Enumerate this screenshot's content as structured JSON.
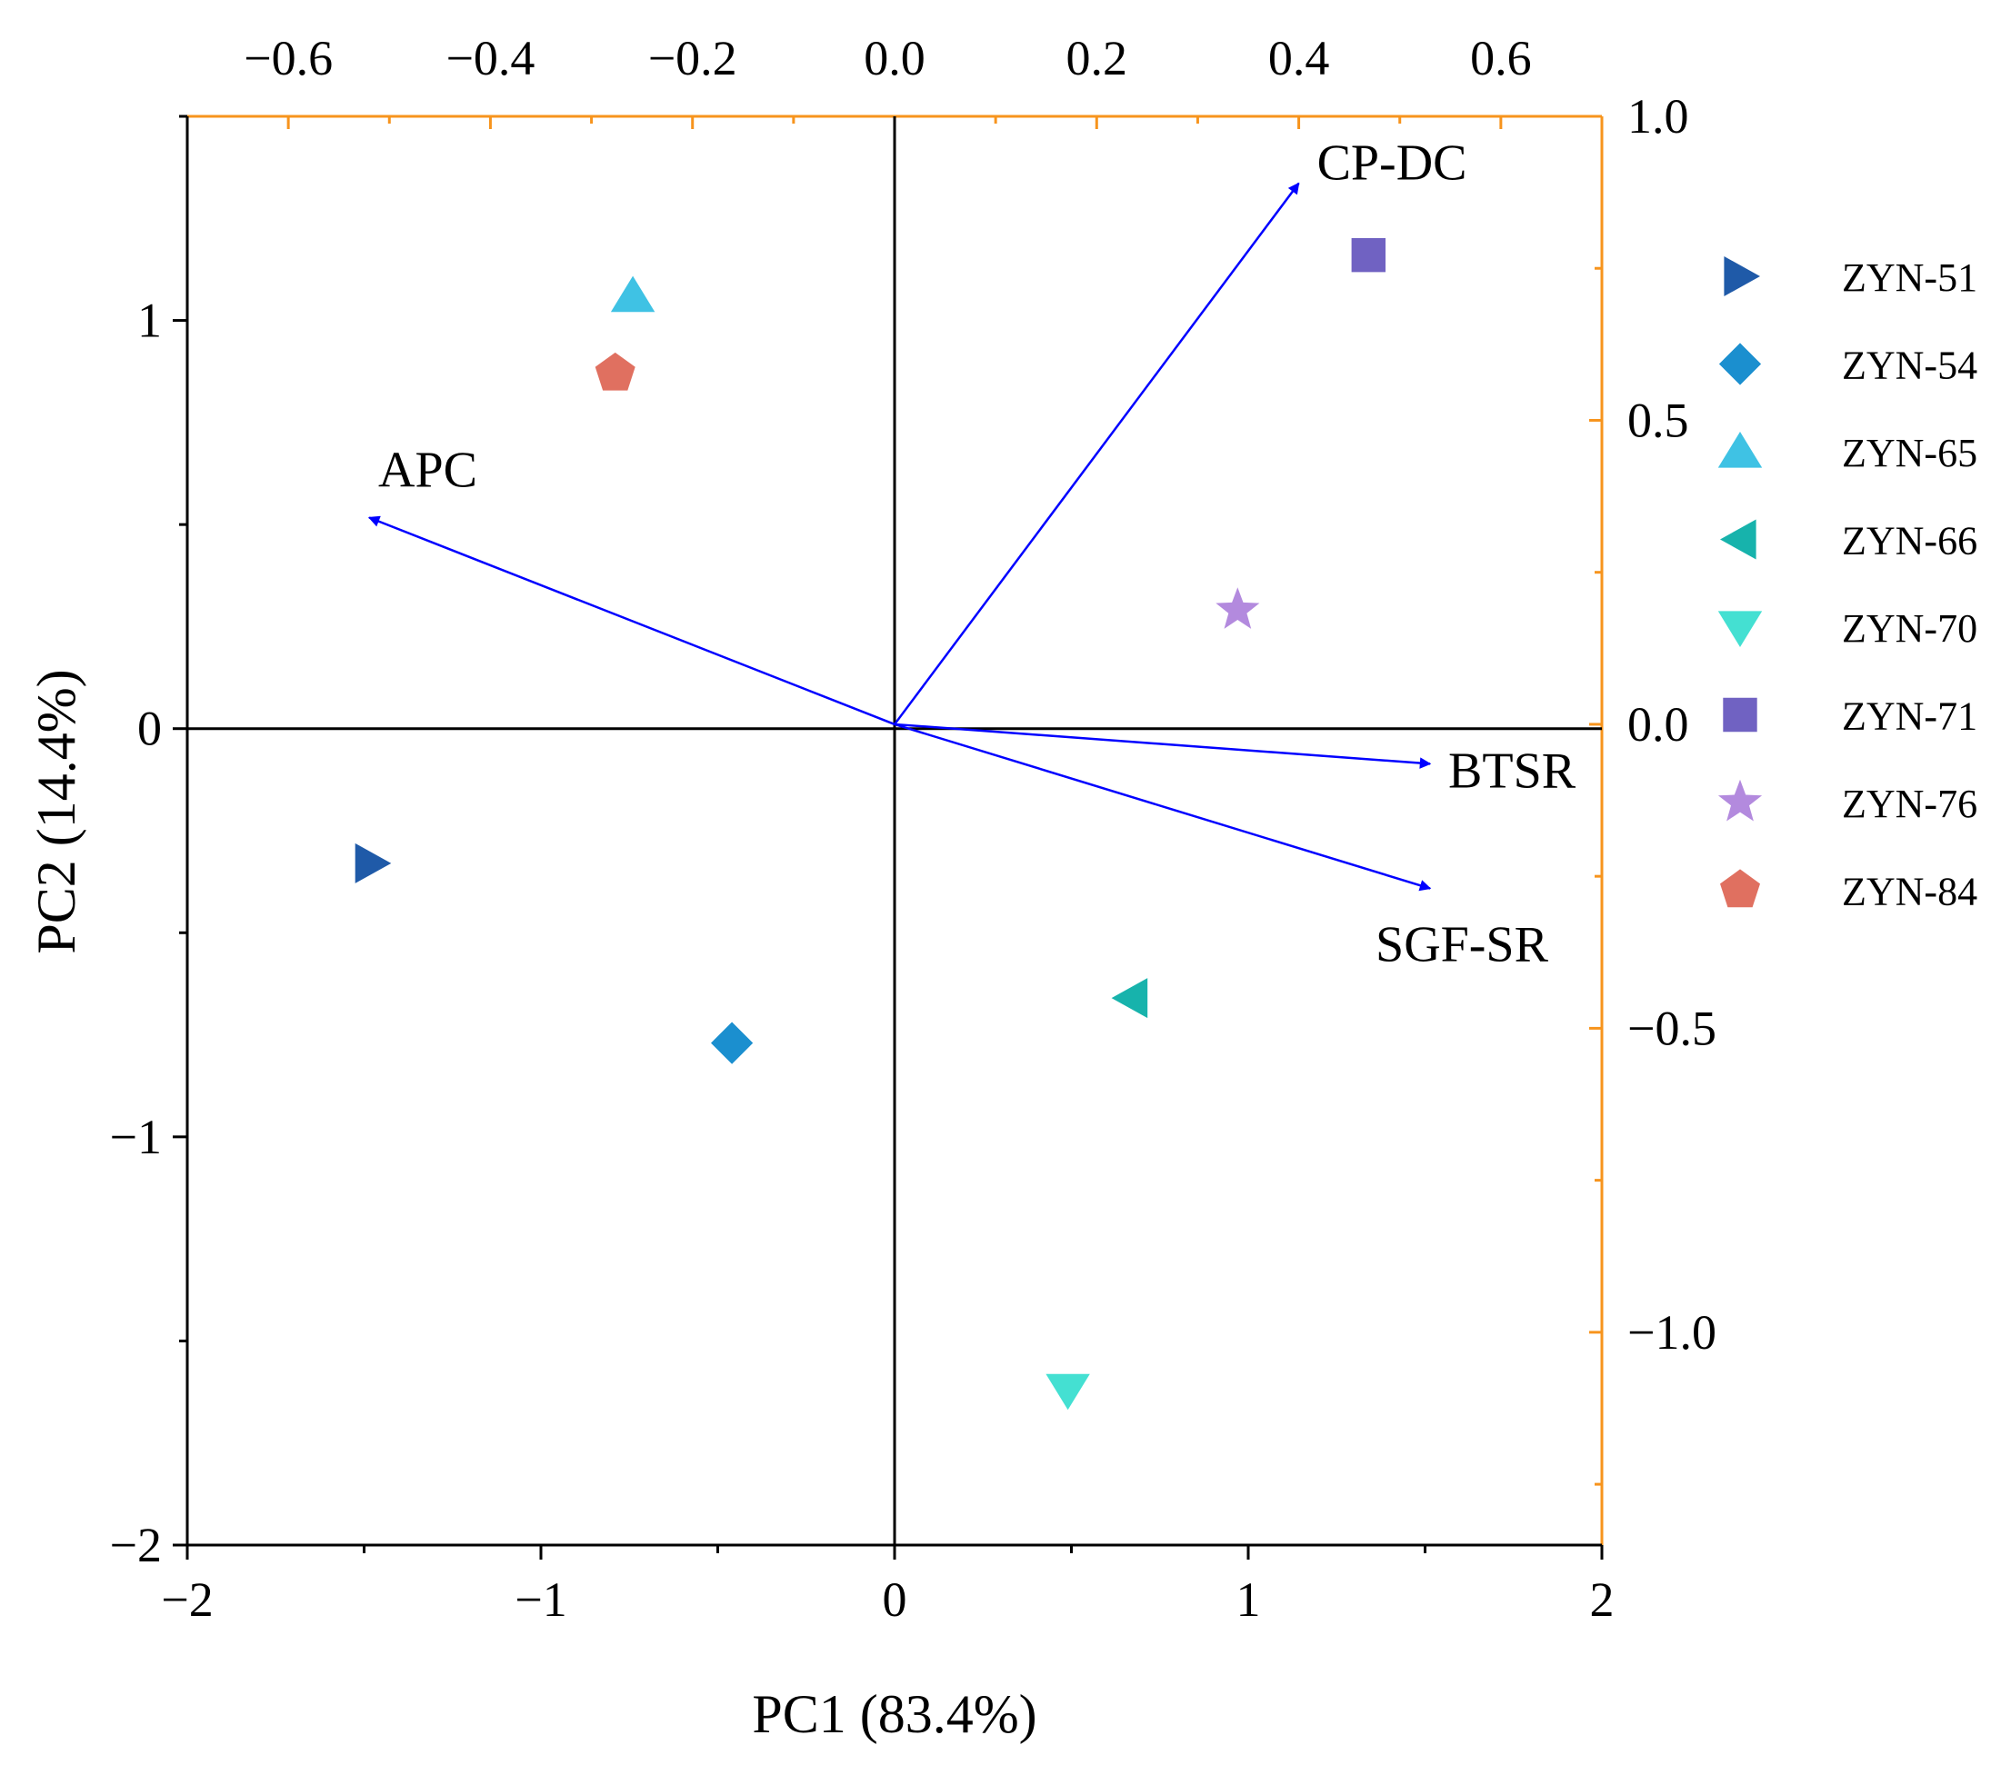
{
  "chart_data": {
    "type": "scatter",
    "subtype": "pca-biplot",
    "title": "",
    "xlabel": "PC1 (83.4%)",
    "ylabel": "PC2 (14.4%)",
    "xlim": [
      -2,
      2
    ],
    "ylim": [
      -2,
      1.5
    ],
    "x_ticks": [
      -2,
      -1,
      0,
      1,
      2
    ],
    "x_tick_labels": [
      "−2",
      "−1",
      "0",
      "1",
      "2"
    ],
    "y_ticks": [
      -2,
      -1,
      0,
      1
    ],
    "y_tick_labels": [
      "−2",
      "−1",
      "0",
      "1"
    ],
    "secondary_x": {
      "lim": [
        -0.7,
        0.7
      ],
      "ticks": [
        -0.6,
        -0.4,
        -0.2,
        0.0,
        0.2,
        0.4,
        0.6
      ],
      "tick_labels": [
        "−0.6",
        "−0.4",
        "−0.2",
        "0.0",
        "0.2",
        "0.4",
        "0.6"
      ]
    },
    "secondary_y": {
      "lim": [
        -1.35,
        1.0
      ],
      "ticks": [
        -1.0,
        -0.5,
        0.0,
        0.5,
        1.0
      ],
      "tick_labels": [
        "−1.0",
        "−0.5",
        "0.0",
        "0.5",
        "1.0"
      ]
    },
    "grid": false,
    "legend_position": "right",
    "loadings": [
      {
        "label": "CP-DC",
        "x": 0.4,
        "y": 0.89
      },
      {
        "label": "APC",
        "x": -0.52,
        "y": 0.34
      },
      {
        "label": "BTSR",
        "x": 0.53,
        "y": -0.065
      },
      {
        "label": "SGF-SR",
        "x": 0.53,
        "y": -0.27
      }
    ],
    "series": [
      {
        "name": "ZYN-51",
        "marker": "triangle-right",
        "color": "#1f5aa8",
        "x": -1.48,
        "y": -0.33
      },
      {
        "name": "ZYN-54",
        "marker": "diamond",
        "color": "#1b8fcf",
        "x": -0.46,
        "y": -0.77
      },
      {
        "name": "ZYN-65",
        "marker": "triangle-up",
        "color": "#3fc2e4",
        "x": -0.74,
        "y": 1.06
      },
      {
        "name": "ZYN-66",
        "marker": "triangle-left",
        "color": "#17b3ac",
        "x": 0.67,
        "y": -0.66
      },
      {
        "name": "ZYN-70",
        "marker": "triangle-down",
        "color": "#44e0d2",
        "x": 0.49,
        "y": -1.62
      },
      {
        "name": "ZYN-71",
        "marker": "square",
        "color": "#7062c2",
        "x": 1.34,
        "y": 1.16
      },
      {
        "name": "ZYN-76",
        "marker": "star",
        "color": "#b38ade",
        "x": 0.97,
        "y": 0.29
      },
      {
        "name": "ZYN-84",
        "marker": "pentagon",
        "color": "#e07060",
        "x": -0.79,
        "y": 0.87
      }
    ],
    "colors": {
      "axis": "#000000",
      "secondary_axis": "#f7941d",
      "arrow": "#0000ff"
    }
  }
}
